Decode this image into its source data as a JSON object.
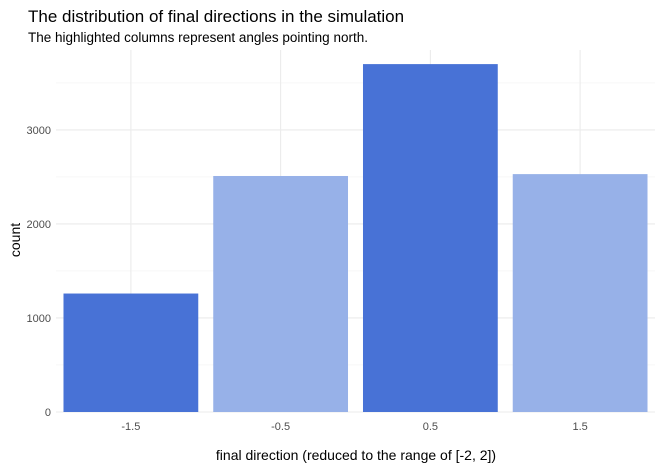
{
  "chart_data": {
    "type": "bar",
    "title": "The distribution of final directions in the simulation",
    "subtitle": "The highlighted columns represent angles pointing north.",
    "xlabel": "final direction (reduced to the range of [-2, 2])",
    "ylabel": "count",
    "categories": [
      "-1.5",
      "-0.5",
      "0.5",
      "1.5"
    ],
    "x": [
      -1.5,
      -0.5,
      0.5,
      1.5
    ],
    "values": [
      1260,
      2510,
      3700,
      2530
    ],
    "highlighted": [
      true,
      false,
      true,
      false
    ],
    "colors": {
      "highlighted": "#4872d6",
      "normal": "#97b1e8"
    },
    "xlim": [
      -2,
      2
    ],
    "ylim": [
      0,
      3850
    ],
    "y_ticks": [
      0,
      1000,
      2000,
      3000
    ],
    "y_tick_labels": [
      "0",
      "1000",
      "2000",
      "3000"
    ],
    "grid": true,
    "legend": "none"
  }
}
